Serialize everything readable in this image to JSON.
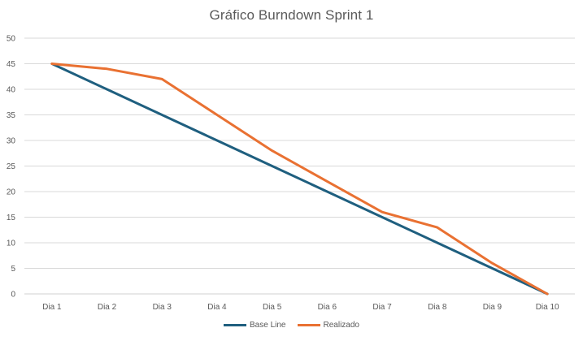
{
  "chart_data": {
    "type": "line",
    "title": "Gráfico Burndown Sprint 1",
    "xlabel": "",
    "ylabel": "",
    "categories": [
      "Dia 1",
      "Dia 2",
      "Dia 3",
      "Dia 4",
      "Dia 5",
      "Dia 6",
      "Dia 7",
      "Dia 8",
      "Dia 9",
      "Dia 10"
    ],
    "ylim": [
      0,
      50
    ],
    "yticks": [
      0,
      5,
      10,
      15,
      20,
      25,
      30,
      35,
      40,
      45,
      50
    ],
    "grid": true,
    "legend_position": "bottom",
    "series": [
      {
        "name": "Base Line",
        "color": "#1f5f7f",
        "values": [
          45,
          40,
          35,
          30,
          25,
          20,
          15,
          10,
          5,
          0
        ]
      },
      {
        "name": "Realizado",
        "color": "#e97132",
        "values": [
          45,
          44,
          42,
          35,
          28,
          22,
          16,
          13,
          6,
          0
        ]
      }
    ]
  }
}
